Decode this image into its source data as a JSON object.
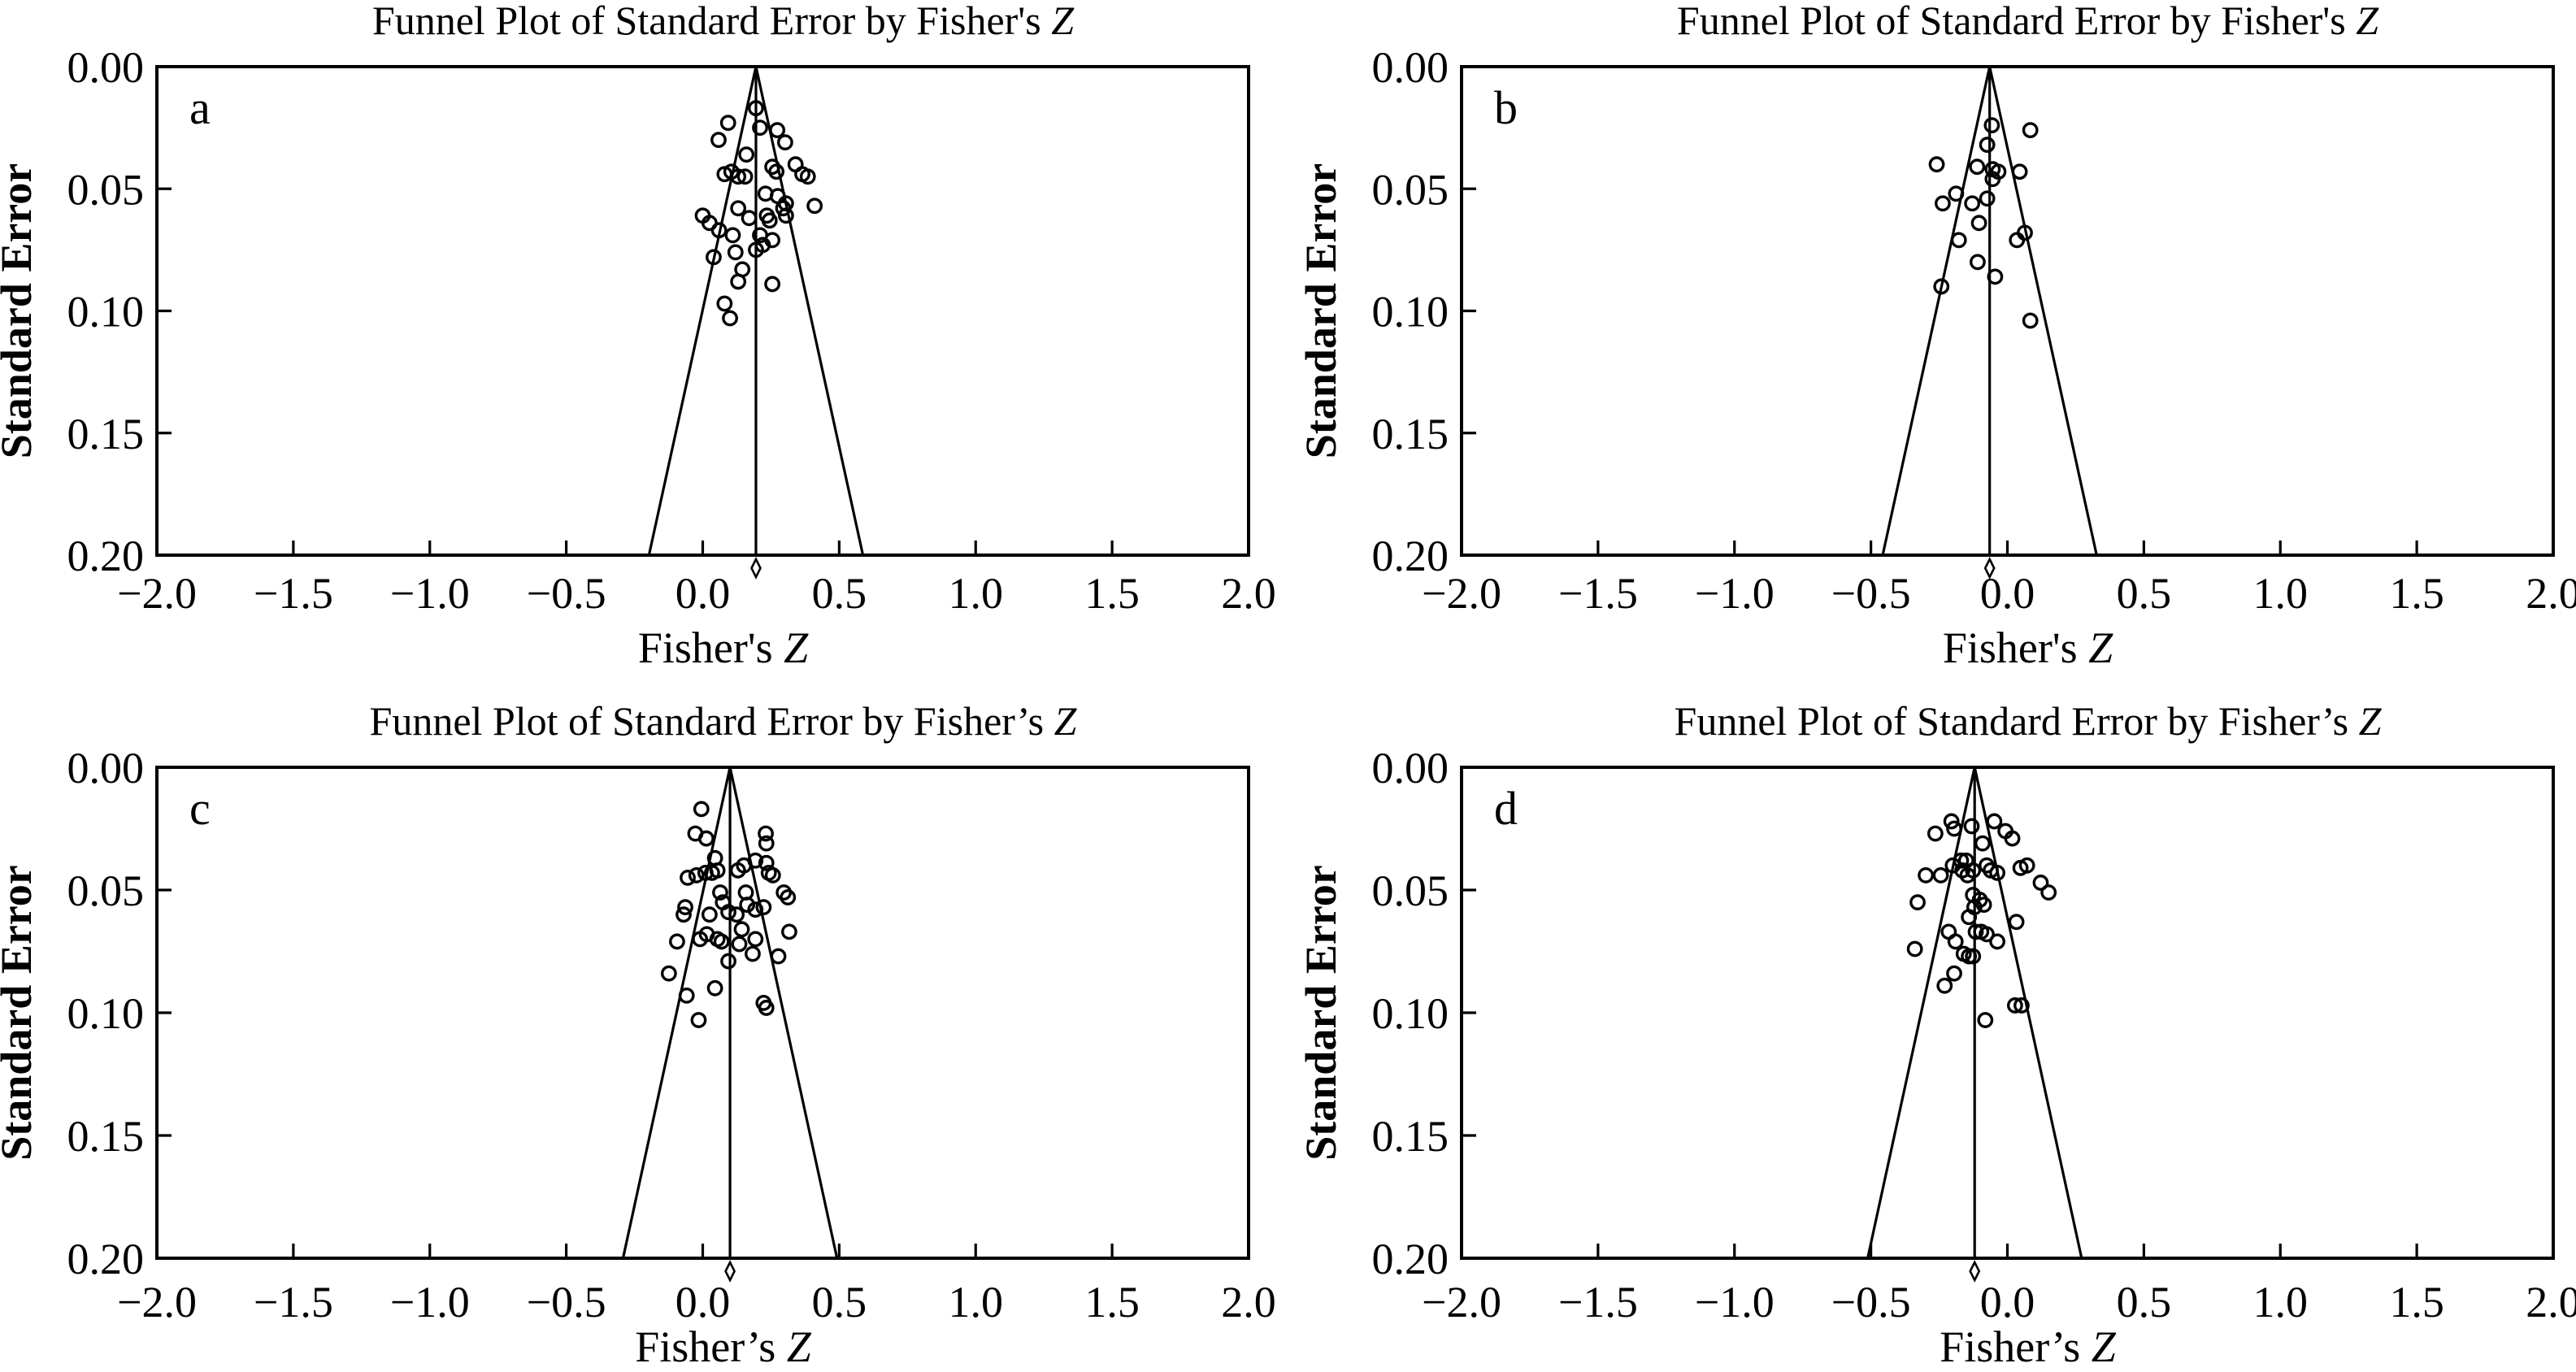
{
  "figure": {
    "background_color": "#ffffff",
    "ink_color": "#000000",
    "description": "Four funnel plots (a-d) of Standard Error by Fisher's Z"
  },
  "chart_data": [
    {
      "id": "a",
      "panel_letter": "a",
      "type": "scatter",
      "title": "Funnel Plot of Standard Error by Fisher's Z",
      "xlabel": "Fisher's Z",
      "ylabel": "Standard Error",
      "xlim": [
        -2.0,
        2.0
      ],
      "ylim": [
        0.0,
        0.2
      ],
      "y_inverted": true,
      "grid": false,
      "x_ticks": [
        -2.0,
        -1.5,
        -1.0,
        -0.5,
        0.0,
        0.5,
        1.0,
        1.5,
        2.0
      ],
      "x_tick_labels": [
        "−2.0",
        "−1.5",
        "−1.0",
        "−0.5",
        "0.0",
        "0.5",
        "1.0",
        "1.5",
        "2.0"
      ],
      "y_ticks": [
        0.0,
        0.05,
        0.1,
        0.15,
        0.2
      ],
      "y_tick_labels": [
        "0.00",
        "0.05",
        "0.10",
        "0.15",
        "0.20"
      ],
      "funnel_center": 0.195,
      "funnel_halfwidth_at_max_se": 0.392,
      "diamond_x": 0.195,
      "points": [
        [
          0.093,
          0.023
        ],
        [
          0.058,
          0.03
        ],
        [
          0.195,
          0.017
        ],
        [
          0.21,
          0.025
        ],
        [
          0.273,
          0.026
        ],
        [
          0.302,
          0.031
        ],
        [
          0.16,
          0.036
        ],
        [
          0.105,
          0.043
        ],
        [
          0.13,
          0.045
        ],
        [
          0.08,
          0.044
        ],
        [
          0.155,
          0.045
        ],
        [
          0.255,
          0.041
        ],
        [
          0.27,
          0.043
        ],
        [
          0.34,
          0.04
        ],
        [
          0.365,
          0.044
        ],
        [
          0.385,
          0.045
        ],
        [
          0.23,
          0.052
        ],
        [
          0.275,
          0.053
        ],
        [
          0.305,
          0.056
        ],
        [
          0.41,
          0.057
        ],
        [
          0.0,
          0.061
        ],
        [
          0.025,
          0.064
        ],
        [
          0.13,
          0.058
        ],
        [
          0.17,
          0.062
        ],
        [
          0.235,
          0.061
        ],
        [
          0.245,
          0.063
        ],
        [
          0.295,
          0.058
        ],
        [
          0.305,
          0.061
        ],
        [
          0.06,
          0.067
        ],
        [
          0.11,
          0.069
        ],
        [
          0.21,
          0.069
        ],
        [
          0.255,
          0.071
        ],
        [
          0.22,
          0.073
        ],
        [
          0.195,
          0.075
        ],
        [
          0.12,
          0.076
        ],
        [
          0.04,
          0.078
        ],
        [
          0.145,
          0.083
        ],
        [
          0.13,
          0.088
        ],
        [
          0.255,
          0.089
        ],
        [
          0.08,
          0.097
        ],
        [
          0.1,
          0.103
        ]
      ]
    },
    {
      "id": "b",
      "panel_letter": "b",
      "type": "scatter",
      "title": "Funnel Plot of Standard Error by Fisher's Z",
      "xlabel": "Fisher's Z",
      "ylabel": "Standard Error",
      "xlim": [
        -2.0,
        2.0
      ],
      "ylim": [
        0.0,
        0.2
      ],
      "y_inverted": true,
      "grid": false,
      "x_ticks": [
        -2.0,
        -1.5,
        -1.0,
        -0.5,
        0.0,
        0.5,
        1.0,
        1.5,
        2.0
      ],
      "x_tick_labels": [
        "−2.0",
        "−1.5",
        "−1.0",
        "−0.5",
        "0.0",
        "0.5",
        "1.0",
        "1.5",
        "2.0"
      ],
      "y_ticks": [
        0.0,
        0.05,
        0.1,
        0.15,
        0.2
      ],
      "y_tick_labels": [
        "0.00",
        "0.05",
        "0.10",
        "0.15",
        "0.20"
      ],
      "funnel_center": -0.065,
      "funnel_halfwidth_at_max_se": 0.392,
      "diamond_x": -0.065,
      "points": [
        [
          -0.057,
          0.024
        ],
        [
          0.084,
          0.026
        ],
        [
          -0.074,
          0.032
        ],
        [
          -0.259,
          0.04
        ],
        [
          -0.111,
          0.041
        ],
        [
          -0.054,
          0.042
        ],
        [
          -0.033,
          0.043
        ],
        [
          0.045,
          0.043
        ],
        [
          -0.054,
          0.046
        ],
        [
          -0.188,
          0.052
        ],
        [
          -0.237,
          0.056
        ],
        [
          -0.129,
          0.056
        ],
        [
          -0.074,
          0.054
        ],
        [
          -0.104,
          0.064
        ],
        [
          -0.178,
          0.071
        ],
        [
          0.064,
          0.068
        ],
        [
          0.035,
          0.071
        ],
        [
          -0.109,
          0.08
        ],
        [
          -0.045,
          0.086
        ],
        [
          -0.242,
          0.09
        ],
        [
          0.084,
          0.104
        ]
      ]
    },
    {
      "id": "c",
      "panel_letter": "c",
      "type": "scatter",
      "title": "Funnel Plot of Standard Error by Fisher’s Z",
      "xlabel": "Fisher’s Z",
      "ylabel": "Standard Error",
      "xlim": [
        -2.0,
        2.0
      ],
      "ylim": [
        0.0,
        0.2
      ],
      "y_inverted": true,
      "grid": false,
      "x_ticks": [
        -2.0,
        -1.5,
        -1.0,
        -0.5,
        0.0,
        0.5,
        1.0,
        1.5,
        2.0
      ],
      "x_tick_labels": [
        "−2.0",
        "−1.5",
        "−1.0",
        "−0.5",
        "0.0",
        "0.5",
        "1.0",
        "1.5",
        "2.0"
      ],
      "y_ticks": [
        0.0,
        0.05,
        0.1,
        0.15,
        0.2
      ],
      "y_tick_labels": [
        "0.00",
        "0.05",
        "0.10",
        "0.15",
        "0.20"
      ],
      "funnel_center": 0.1,
      "funnel_halfwidth_at_max_se": 0.392,
      "diamond_x": 0.1,
      "points": [
        [
          -0.005,
          0.017
        ],
        [
          -0.027,
          0.027
        ],
        [
          0.013,
          0.029
        ],
        [
          0.231,
          0.027
        ],
        [
          0.233,
          0.031
        ],
        [
          0.045,
          0.037
        ],
        [
          0.193,
          0.038
        ],
        [
          0.233,
          0.039
        ],
        [
          0.242,
          0.043
        ],
        [
          0.257,
          0.044
        ],
        [
          -0.055,
          0.045
        ],
        [
          -0.023,
          0.044
        ],
        [
          0.01,
          0.043
        ],
        [
          0.034,
          0.043
        ],
        [
          0.054,
          0.042
        ],
        [
          0.129,
          0.042
        ],
        [
          0.151,
          0.04
        ],
        [
          0.297,
          0.051
        ],
        [
          0.312,
          0.053
        ],
        [
          0.064,
          0.051
        ],
        [
          0.074,
          0.055
        ],
        [
          0.158,
          0.051
        ],
        [
          0.163,
          0.056
        ],
        [
          -0.064,
          0.057
        ],
        [
          -0.07,
          0.06
        ],
        [
          0.025,
          0.06
        ],
        [
          0.094,
          0.059
        ],
        [
          0.124,
          0.06
        ],
        [
          0.193,
          0.058
        ],
        [
          0.223,
          0.057
        ],
        [
          -0.094,
          0.071
        ],
        [
          -0.01,
          0.07
        ],
        [
          0.015,
          0.068
        ],
        [
          0.054,
          0.07
        ],
        [
          0.069,
          0.071
        ],
        [
          0.143,
          0.066
        ],
        [
          0.317,
          0.067
        ],
        [
          0.134,
          0.072
        ],
        [
          0.193,
          0.07
        ],
        [
          0.183,
          0.076
        ],
        [
          0.094,
          0.079
        ],
        [
          0.277,
          0.077
        ],
        [
          -0.124,
          0.084
        ],
        [
          -0.059,
          0.093
        ],
        [
          0.045,
          0.09
        ],
        [
          0.223,
          0.096
        ],
        [
          0.233,
          0.098
        ],
        [
          -0.015,
          0.103
        ]
      ]
    },
    {
      "id": "d",
      "panel_letter": "d",
      "type": "scatter",
      "title": "Funnel Plot of Standard Error by Fisher’s Z",
      "xlabel": "Fisher’s Z",
      "ylabel": "Standard Error",
      "xlim": [
        -2.0,
        2.0
      ],
      "ylim": [
        0.0,
        0.2
      ],
      "y_inverted": true,
      "grid": false,
      "x_ticks": [
        -2.0,
        -1.5,
        -1.0,
        -0.5,
        0.0,
        0.5,
        1.0,
        1.5,
        2.0
      ],
      "x_tick_labels": [
        "−2.0",
        "−1.5",
        "−1.0",
        "−0.5",
        "0.0",
        "0.5",
        "1.0",
        "1.5",
        "2.0"
      ],
      "y_ticks": [
        0.0,
        0.05,
        0.1,
        0.15,
        0.2
      ],
      "y_tick_labels": [
        "0.00",
        "0.05",
        "0.10",
        "0.15",
        "0.20"
      ],
      "funnel_center": -0.12,
      "funnel_halfwidth_at_max_se": 0.392,
      "diamond_x": -0.12,
      "points": [
        [
          -0.264,
          0.027
        ],
        [
          -0.205,
          0.022
        ],
        [
          -0.195,
          0.025
        ],
        [
          -0.131,
          0.024
        ],
        [
          -0.048,
          0.022
        ],
        [
          -0.007,
          0.026
        ],
        [
          0.018,
          0.029
        ],
        [
          -0.091,
          0.031
        ],
        [
          -0.299,
          0.044
        ],
        [
          -0.244,
          0.044
        ],
        [
          -0.2,
          0.04
        ],
        [
          -0.17,
          0.038
        ],
        [
          -0.151,
          0.038
        ],
        [
          -0.165,
          0.042
        ],
        [
          -0.146,
          0.044
        ],
        [
          -0.126,
          0.042
        ],
        [
          -0.076,
          0.04
        ],
        [
          -0.061,
          0.042
        ],
        [
          -0.037,
          0.043
        ],
        [
          0.048,
          0.041
        ],
        [
          0.072,
          0.04
        ],
        [
          0.122,
          0.047
        ],
        [
          0.151,
          0.051
        ],
        [
          -0.329,
          0.055
        ],
        [
          -0.126,
          0.052
        ],
        [
          -0.101,
          0.054
        ],
        [
          -0.086,
          0.056
        ],
        [
          -0.141,
          0.061
        ],
        [
          -0.121,
          0.057
        ],
        [
          0.033,
          0.063
        ],
        [
          -0.215,
          0.067
        ],
        [
          -0.19,
          0.071
        ],
        [
          -0.116,
          0.067
        ],
        [
          -0.096,
          0.067
        ],
        [
          -0.076,
          0.068
        ],
        [
          -0.037,
          0.071
        ],
        [
          -0.339,
          0.074
        ],
        [
          -0.16,
          0.076
        ],
        [
          -0.141,
          0.077
        ],
        [
          -0.126,
          0.077
        ],
        [
          -0.195,
          0.084
        ],
        [
          -0.23,
          0.089
        ],
        [
          0.028,
          0.097
        ],
        [
          0.052,
          0.097
        ],
        [
          -0.081,
          0.103
        ]
      ]
    }
  ]
}
